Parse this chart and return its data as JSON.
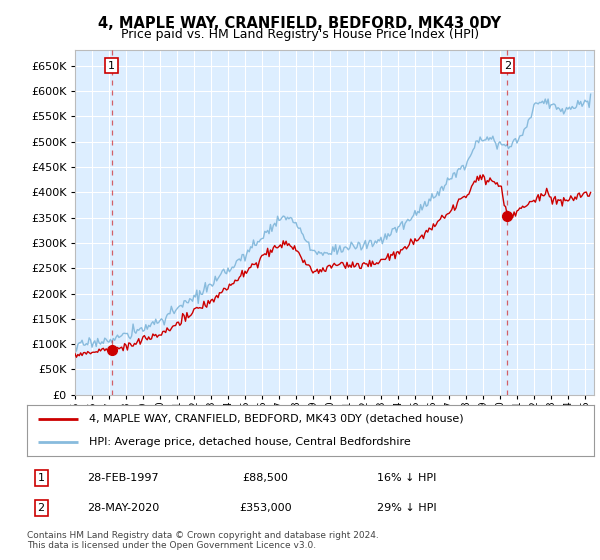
{
  "title": "4, MAPLE WAY, CRANFIELD, BEDFORD, MK43 0DY",
  "subtitle": "Price paid vs. HM Land Registry's House Price Index (HPI)",
  "legend_line1": "4, MAPLE WAY, CRANFIELD, BEDFORD, MK43 0DY (detached house)",
  "legend_line2": "HPI: Average price, detached house, Central Bedfordshire",
  "annotation1_date": "28-FEB-1997",
  "annotation1_price": "£88,500",
  "annotation1_hpi": "16% ↓ HPI",
  "annotation2_date": "28-MAY-2020",
  "annotation2_price": "£353,000",
  "annotation2_hpi": "29% ↓ HPI",
  "footer": "Contains HM Land Registry data © Crown copyright and database right 2024.\nThis data is licensed under the Open Government Licence v3.0.",
  "ylim": [
    0,
    680000
  ],
  "yticks": [
    0,
    50000,
    100000,
    150000,
    200000,
    250000,
    300000,
    350000,
    400000,
    450000,
    500000,
    550000,
    600000,
    650000
  ],
  "xlim_start": 1995.0,
  "xlim_end": 2025.5,
  "sale1_x": 1997.16,
  "sale1_y": 88500,
  "sale2_x": 2020.41,
  "sale2_y": 353000,
  "property_color": "#cc0000",
  "hpi_color": "#88bbdd",
  "plot_bg": "#ddeeff"
}
